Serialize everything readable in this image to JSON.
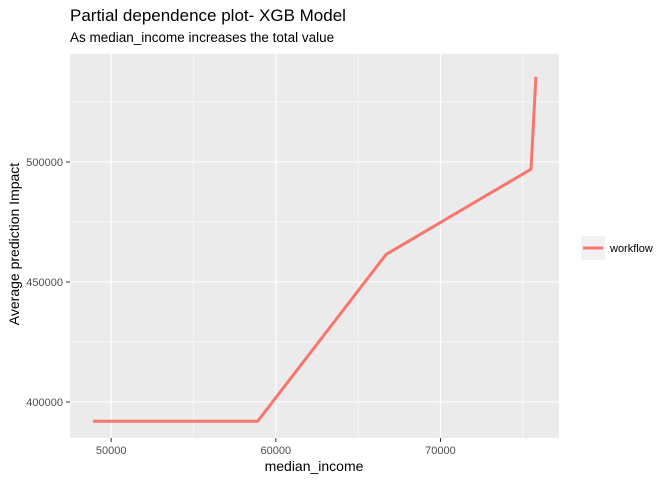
{
  "chart_data": {
    "type": "line",
    "title": "Partial dependence plot- XGB Model",
    "subtitle": "As median_income increases the total value",
    "xlabel": "median_income",
    "ylabel": "Average prediction Impact",
    "xlim": [
      47500,
      77200
    ],
    "ylim": [
      385000,
      545000
    ],
    "x_ticks": [
      50000,
      60000,
      70000
    ],
    "x_tick_labels": [
      "50000",
      "60000",
      "70000"
    ],
    "x_minor_ticks": [
      55000,
      65000,
      75000
    ],
    "y_ticks": [
      400000,
      450000,
      500000
    ],
    "y_tick_labels": [
      "400000",
      "450000",
      "500000"
    ],
    "y_minor_ticks": [
      425000,
      475000,
      525000
    ],
    "grid": true,
    "legend_position": "right",
    "series": [
      {
        "name": "workflow",
        "color": "#F8766D",
        "x": [
          48900,
          58900,
          66700,
          75500,
          75800
        ],
        "y": [
          392000,
          392000,
          461500,
          497000,
          535500
        ]
      }
    ]
  }
}
